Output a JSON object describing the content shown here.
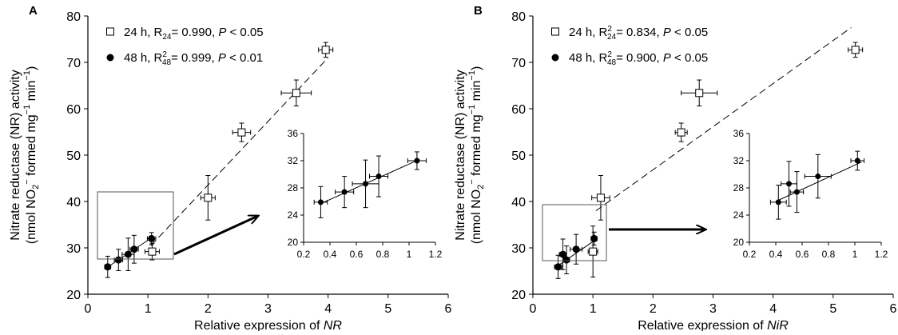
{
  "chart_data": [
    {
      "panel": "A",
      "type": "scatter",
      "xlabel": "Relative expression of",
      "xlabel_italic": "NR",
      "ylabel_line1": "Nitrate reductase (NR) activity",
      "ylabel_line2_prefix": "(nmol NO",
      "ylabel_line2_sub": "2",
      "ylabel_line2_sup": "−",
      "ylabel_line2_mid": " formed mg",
      "ylabel_line2_sup2": "−1",
      "ylabel_line2_end": " min",
      "ylabel_line2_sup3": "−1",
      "ylabel_line2_close": ")",
      "xlim": [
        0,
        6
      ],
      "ylim": [
        20,
        80
      ],
      "xticks": [
        0,
        1,
        2,
        3,
        4,
        5,
        6
      ],
      "yticks": [
        20,
        30,
        40,
        50,
        60,
        70,
        80
      ],
      "legend": [
        {
          "marker": "open-square",
          "t1": "24 h, R",
          "sub": "24",
          "t2": "= 0.990, ",
          "p": "P",
          "t3": " < 0.05"
        },
        {
          "marker": "filled-circle",
          "t1": "48 h, R",
          "sup": "2",
          "sub": "48",
          "t2": "= 0.999, ",
          "p": "P",
          "t3": " < 0.01"
        }
      ],
      "series": [
        {
          "marker": "open-square",
          "fit": "dashed",
          "points": [
            {
              "x": 1.07,
              "y": 29.2,
              "xerr": 0.12,
              "yerr": 1.8
            },
            {
              "x": 2.0,
              "y": 40.8,
              "xerr": 0.12,
              "yerr": 4.8
            },
            {
              "x": 2.56,
              "y": 54.9,
              "xerr": 0.15,
              "yerr": 2.0
            },
            {
              "x": 3.47,
              "y": 63.4,
              "xerr": 0.25,
              "yerr": 2.8
            },
            {
              "x": 3.96,
              "y": 72.7,
              "xerr": 0.12,
              "yerr": 1.6
            }
          ],
          "fit_line": [
            [
              1.05,
              30.5
            ],
            [
              4.0,
              71.0
            ]
          ]
        },
        {
          "marker": "filled-circle",
          "fit": "solid",
          "points": [
            {
              "x": 0.33,
              "y": 25.9,
              "xerr": 0.05,
              "yerr": 2.3
            },
            {
              "x": 0.51,
              "y": 27.4,
              "xerr": 0.07,
              "yerr": 2.3
            },
            {
              "x": 0.67,
              "y": 28.6,
              "xerr": 0.1,
              "yerr": 3.5
            },
            {
              "x": 0.77,
              "y": 29.7,
              "xerr": 0.07,
              "yerr": 3.0
            },
            {
              "x": 1.06,
              "y": 32.0,
              "xerr": 0.07,
              "yerr": 1.3
            }
          ],
          "fit_line": [
            [
              0.3,
              25.6
            ],
            [
              1.1,
              32.5
            ]
          ]
        }
      ],
      "inset": {
        "xlim": [
          0.2,
          1.2
        ],
        "ylim": [
          20,
          36
        ],
        "xticks": [
          0.2,
          0.4,
          0.6,
          0.8,
          1.0,
          1.2
        ],
        "yticks": [
          20,
          24,
          28,
          32,
          36
        ],
        "xtick_labels": [
          "0.2",
          "0.4",
          "0.6",
          "0.8",
          "1",
          "1.2"
        ],
        "fit_line": [
          [
            0.32,
            25.6
          ],
          [
            1.08,
            32.2
          ]
        ]
      }
    },
    {
      "panel": "B",
      "type": "scatter",
      "xlabel": "Relative expression of",
      "xlabel_italic": "NiR",
      "ylabel_line1": "Nitrate reductase (NR) activity",
      "ylabel_line2_prefix": "(nmol NO",
      "ylabel_line2_sub": "2",
      "ylabel_line2_sup": "−",
      "ylabel_line2_mid": " formed mg",
      "ylabel_line2_sup2": "−1",
      "ylabel_line2_end": " min",
      "ylabel_line2_sup3": "−1",
      "ylabel_line2_close": ")",
      "xlim": [
        0,
        6
      ],
      "ylim": [
        20,
        80
      ],
      "xticks": [
        0,
        1,
        2,
        3,
        4,
        5,
        6
      ],
      "yticks": [
        20,
        30,
        40,
        50,
        60,
        70,
        80
      ],
      "legend": [
        {
          "marker": "open-square",
          "t1": "24 h, R",
          "sup": "2",
          "sub": "24",
          "t2": "= 0.834, ",
          "p": "P",
          "t3": " < 0.05"
        },
        {
          "marker": "filled-circle",
          "t1": "48 h, R",
          "sup": "2",
          "sub": "48",
          "t2": "= 0.900, ",
          "p": "P",
          "t3": " < 0.05"
        }
      ],
      "series": [
        {
          "marker": "open-square",
          "fit": "dashed",
          "points": [
            {
              "x": 1.0,
              "y": 29.2,
              "xerr": 0.08,
              "yerr": 5.5
            },
            {
              "x": 1.13,
              "y": 40.8,
              "xerr": 0.15,
              "yerr": 4.8
            },
            {
              "x": 2.47,
              "y": 54.9,
              "xerr": 0.1,
              "yerr": 2.0
            },
            {
              "x": 2.77,
              "y": 63.4,
              "xerr": 0.3,
              "yerr": 2.8
            },
            {
              "x": 5.37,
              "y": 72.7,
              "xerr": 0.12,
              "yerr": 1.6
            }
          ],
          "fit_line": [
            [
              1.05,
              38.0
            ],
            [
              5.3,
              77.5
            ]
          ]
        },
        {
          "marker": "filled-circle",
          "fit": "solid",
          "points": [
            {
              "x": 0.42,
              "y": 25.9,
              "xerr": 0.06,
              "yerr": 2.5
            },
            {
              "x": 0.5,
              "y": 28.6,
              "xerr": 0.06,
              "yerr": 3.3
            },
            {
              "x": 0.56,
              "y": 27.4,
              "xerr": 0.05,
              "yerr": 3.0
            },
            {
              "x": 0.72,
              "y": 29.7,
              "xerr": 0.1,
              "yerr": 3.2
            },
            {
              "x": 1.02,
              "y": 32.0,
              "xerr": 0.05,
              "yerr": 1.4
            }
          ],
          "fit_line": [
            [
              0.4,
              26.0
            ],
            [
              1.05,
              31.8
            ]
          ]
        }
      ],
      "inset": {
        "xlim": [
          0.2,
          1.2
        ],
        "ylim": [
          20,
          36
        ],
        "xticks": [
          0.2,
          0.4,
          0.6,
          0.8,
          1.0,
          1.2
        ],
        "yticks": [
          20,
          24,
          28,
          32,
          36
        ],
        "xtick_labels": [
          "0.2",
          "0.4",
          "0.6",
          "0.8",
          "1",
          "1.2"
        ],
        "fit_line": [
          [
            0.4,
            26.0
          ],
          [
            1.05,
            31.8
          ]
        ]
      }
    }
  ]
}
